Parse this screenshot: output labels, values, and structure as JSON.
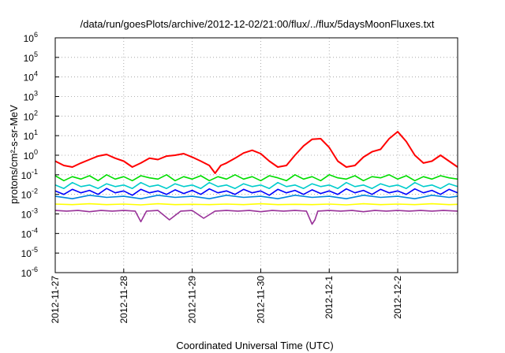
{
  "chart_data": {
    "type": "line",
    "title": "/data/run/goesPlots/archive/2012-12-02/21:00/flux/../flux/5daysMoonFluxes.txt",
    "xlabel": "Coordinated Universal Time (UTC)",
    "ylabel": "protons/cm²-s-sr-MeV",
    "yscale": "log",
    "ylim": [
      1e-06,
      1000000.0
    ],
    "xlim": [
      "2012-11-27T00:00",
      "2012-12-02T21:00"
    ],
    "x_ticks": [
      "2012-11-27",
      "2012-11-28",
      "2012-11-29",
      "2012-11-30",
      "2012-12-1",
      "2012-12-2"
    ],
    "y_ticks": [
      {
        "base": "10",
        "exp": "6"
      },
      {
        "base": "10",
        "exp": "5"
      },
      {
        "base": "10",
        "exp": "4"
      },
      {
        "base": "10",
        "exp": "3"
      },
      {
        "base": "10",
        "exp": "2"
      },
      {
        "base": "10",
        "exp": "1"
      },
      {
        "base": "10",
        "exp": "0"
      },
      {
        "base": "10",
        "exp": "-1"
      },
      {
        "base": "10",
        "exp": "-2"
      },
      {
        "base": "10",
        "exp": "-3"
      },
      {
        "base": "10",
        "exp": "-4"
      },
      {
        "base": "10",
        "exp": "-5"
      },
      {
        "base": "10",
        "exp": "-6"
      }
    ],
    "grid": true,
    "series": [
      {
        "color": "#ff0000",
        "x_hours": [
          0,
          3,
          6,
          9,
          12,
          15,
          18,
          21,
          24,
          27,
          30,
          33,
          36,
          39,
          42,
          45,
          48,
          51,
          54,
          56,
          58,
          60,
          63,
          66,
          69,
          72,
          75,
          78,
          81,
          84,
          87,
          90,
          93,
          96,
          99,
          102,
          105,
          108,
          111,
          114,
          117,
          120,
          123,
          126,
          129,
          132,
          135,
          138,
          141
        ],
        "values": [
          0.5,
          0.3,
          0.25,
          0.4,
          0.6,
          0.9,
          1.1,
          0.7,
          0.5,
          0.25,
          0.4,
          0.7,
          0.6,
          0.9,
          1.0,
          1.2,
          0.8,
          0.5,
          0.3,
          0.12,
          0.3,
          0.4,
          0.7,
          1.3,
          1.8,
          1.2,
          0.5,
          0.25,
          0.3,
          1.0,
          3.0,
          6.5,
          7.0,
          2.5,
          0.5,
          0.25,
          0.3,
          0.8,
          1.5,
          2.0,
          7.0,
          16.0,
          5.0,
          1.0,
          0.4,
          0.5,
          1.0,
          0.5,
          0.25
        ]
      },
      {
        "color": "#00dd00",
        "x_hours": [
          0,
          3,
          6,
          9,
          12,
          15,
          18,
          21,
          24,
          27,
          30,
          33,
          36,
          39,
          42,
          45,
          48,
          51,
          54,
          57,
          60,
          63,
          66,
          69,
          72,
          75,
          78,
          81,
          84,
          87,
          90,
          93,
          96,
          99,
          102,
          105,
          108,
          111,
          114,
          117,
          120,
          123,
          126,
          129,
          132,
          135,
          138,
          141
        ],
        "values": [
          0.09,
          0.05,
          0.08,
          0.06,
          0.09,
          0.05,
          0.1,
          0.06,
          0.08,
          0.05,
          0.09,
          0.07,
          0.06,
          0.1,
          0.05,
          0.08,
          0.06,
          0.09,
          0.05,
          0.08,
          0.06,
          0.1,
          0.06,
          0.08,
          0.05,
          0.09,
          0.07,
          0.05,
          0.1,
          0.06,
          0.08,
          0.05,
          0.1,
          0.07,
          0.06,
          0.09,
          0.05,
          0.08,
          0.07,
          0.1,
          0.06,
          0.09,
          0.05,
          0.08,
          0.06,
          0.09,
          0.07,
          0.06
        ]
      },
      {
        "color": "#00cccc",
        "x_hours": [
          0,
          3,
          6,
          9,
          12,
          15,
          18,
          21,
          24,
          27,
          30,
          33,
          36,
          39,
          42,
          45,
          48,
          51,
          54,
          57,
          60,
          63,
          66,
          69,
          72,
          75,
          78,
          81,
          84,
          87,
          90,
          93,
          96,
          99,
          102,
          105,
          108,
          111,
          114,
          117,
          120,
          123,
          126,
          129,
          132,
          135,
          138,
          141
        ],
        "values": [
          0.03,
          0.02,
          0.04,
          0.025,
          0.03,
          0.02,
          0.035,
          0.025,
          0.03,
          0.02,
          0.04,
          0.025,
          0.03,
          0.02,
          0.035,
          0.025,
          0.03,
          0.02,
          0.04,
          0.025,
          0.03,
          0.02,
          0.035,
          0.025,
          0.03,
          0.02,
          0.04,
          0.025,
          0.03,
          0.02,
          0.035,
          0.025,
          0.03,
          0.02,
          0.04,
          0.025,
          0.03,
          0.02,
          0.035,
          0.025,
          0.03,
          0.02,
          0.04,
          0.025,
          0.03,
          0.02,
          0.035,
          0.025
        ]
      },
      {
        "color": "#0000ff",
        "x_hours": [
          0,
          3,
          6,
          9,
          12,
          15,
          18,
          21,
          24,
          27,
          30,
          33,
          36,
          39,
          42,
          45,
          48,
          51,
          54,
          57,
          60,
          63,
          66,
          69,
          72,
          75,
          78,
          81,
          84,
          87,
          90,
          93,
          96,
          99,
          102,
          105,
          108,
          111,
          114,
          117,
          120,
          123,
          126,
          129,
          132,
          135,
          138,
          141
        ],
        "values": [
          0.015,
          0.01,
          0.018,
          0.012,
          0.016,
          0.01,
          0.02,
          0.012,
          0.015,
          0.009,
          0.018,
          0.012,
          0.015,
          0.01,
          0.017,
          0.011,
          0.016,
          0.01,
          0.019,
          0.012,
          0.015,
          0.01,
          0.018,
          0.012,
          0.015,
          0.009,
          0.018,
          0.012,
          0.016,
          0.01,
          0.017,
          0.011,
          0.015,
          0.01,
          0.019,
          0.012,
          0.016,
          0.01,
          0.018,
          0.012,
          0.015,
          0.01,
          0.019,
          0.012,
          0.016,
          0.01,
          0.018,
          0.012
        ]
      },
      {
        "color": "#0088dd",
        "x_hours": [
          0,
          6,
          12,
          18,
          24,
          30,
          36,
          42,
          48,
          54,
          60,
          66,
          72,
          78,
          84,
          90,
          96,
          102,
          108,
          114,
          120,
          126,
          132,
          138,
          141
        ],
        "values": [
          0.008,
          0.006,
          0.009,
          0.007,
          0.008,
          0.006,
          0.009,
          0.007,
          0.008,
          0.006,
          0.009,
          0.007,
          0.008,
          0.006,
          0.009,
          0.007,
          0.008,
          0.006,
          0.009,
          0.007,
          0.008,
          0.006,
          0.009,
          0.007,
          0.008
        ]
      },
      {
        "color": "#ffff00",
        "x_hours": [
          0,
          6,
          12,
          18,
          24,
          30,
          36,
          42,
          48,
          54,
          60,
          66,
          72,
          78,
          84,
          90,
          96,
          102,
          108,
          114,
          120,
          126,
          132,
          138,
          141
        ],
        "values": [
          0.0032,
          0.003,
          0.0033,
          0.003,
          0.0032,
          0.0029,
          0.0033,
          0.003,
          0.0031,
          0.003,
          0.0032,
          0.003,
          0.0033,
          0.003,
          0.0031,
          0.003,
          0.0032,
          0.0029,
          0.0033,
          0.003,
          0.0032,
          0.003,
          0.0033,
          0.003,
          0.0031
        ]
      },
      {
        "color": "#993399",
        "x_hours": [
          0,
          4,
          8,
          12,
          16,
          20,
          24,
          28,
          30,
          32,
          36,
          40,
          44,
          48,
          52,
          56,
          60,
          64,
          68,
          72,
          76,
          80,
          84,
          88,
          90,
          91,
          92,
          96,
          100,
          104,
          108,
          112,
          116,
          120,
          124,
          128,
          132,
          136,
          141
        ],
        "values": [
          0.0015,
          0.0014,
          0.0015,
          0.0013,
          0.0015,
          0.0014,
          0.0015,
          0.0014,
          0.0004,
          0.0014,
          0.0015,
          0.0005,
          0.0014,
          0.0015,
          0.0006,
          0.0014,
          0.0015,
          0.0014,
          0.0015,
          0.0013,
          0.0015,
          0.0014,
          0.0015,
          0.0014,
          0.0003,
          0.0005,
          0.0014,
          0.0015,
          0.0014,
          0.0015,
          0.0013,
          0.0015,
          0.0014,
          0.0015,
          0.0014,
          0.0015,
          0.0014,
          0.0015,
          0.0014
        ]
      }
    ]
  }
}
